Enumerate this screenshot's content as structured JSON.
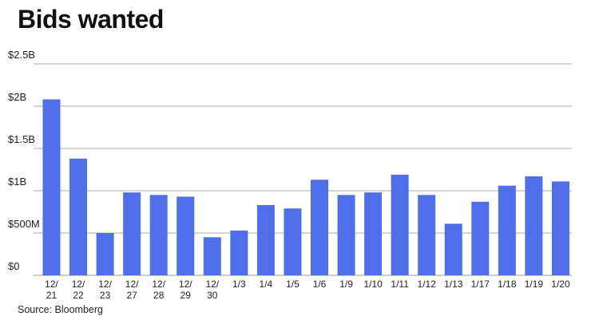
{
  "title": "Bids wanted",
  "source": "Source: Bloomberg",
  "chart_data": {
    "type": "bar",
    "title": "Bids wanted",
    "xlabel": "",
    "ylabel": "",
    "ylim": [
      0,
      2.5
    ],
    "y_unit": "$B",
    "yticks": [
      0,
      0.5,
      1,
      1.5,
      2,
      2.5
    ],
    "ytick_labels": [
      "$0",
      "$500M",
      "$1B",
      "$1.5B",
      "$2B",
      "$2.5B"
    ],
    "grid": true,
    "legend": "none",
    "bar_color": "#4f6fea",
    "categories": [
      [
        "12/",
        "21"
      ],
      [
        "12/",
        "22"
      ],
      [
        "12/",
        "23"
      ],
      [
        "12/",
        "27"
      ],
      [
        "12/",
        "28"
      ],
      [
        "12/",
        "29"
      ],
      [
        "12/",
        "30"
      ],
      [
        "1/3"
      ],
      [
        "1/4"
      ],
      [
        "1/5"
      ],
      [
        "1/6"
      ],
      [
        "1/9"
      ],
      [
        "1/10"
      ],
      [
        "1/11"
      ],
      [
        "1/12"
      ],
      [
        "1/13"
      ],
      [
        "1/17"
      ],
      [
        "1/18"
      ],
      [
        "1/19"
      ],
      [
        "1/20"
      ]
    ],
    "values": [
      2.08,
      1.38,
      0.5,
      0.98,
      0.95,
      0.93,
      0.45,
      0.53,
      0.83,
      0.79,
      1.13,
      0.95,
      0.98,
      1.19,
      0.95,
      0.61,
      0.87,
      1.06,
      1.17,
      1.11
    ]
  }
}
